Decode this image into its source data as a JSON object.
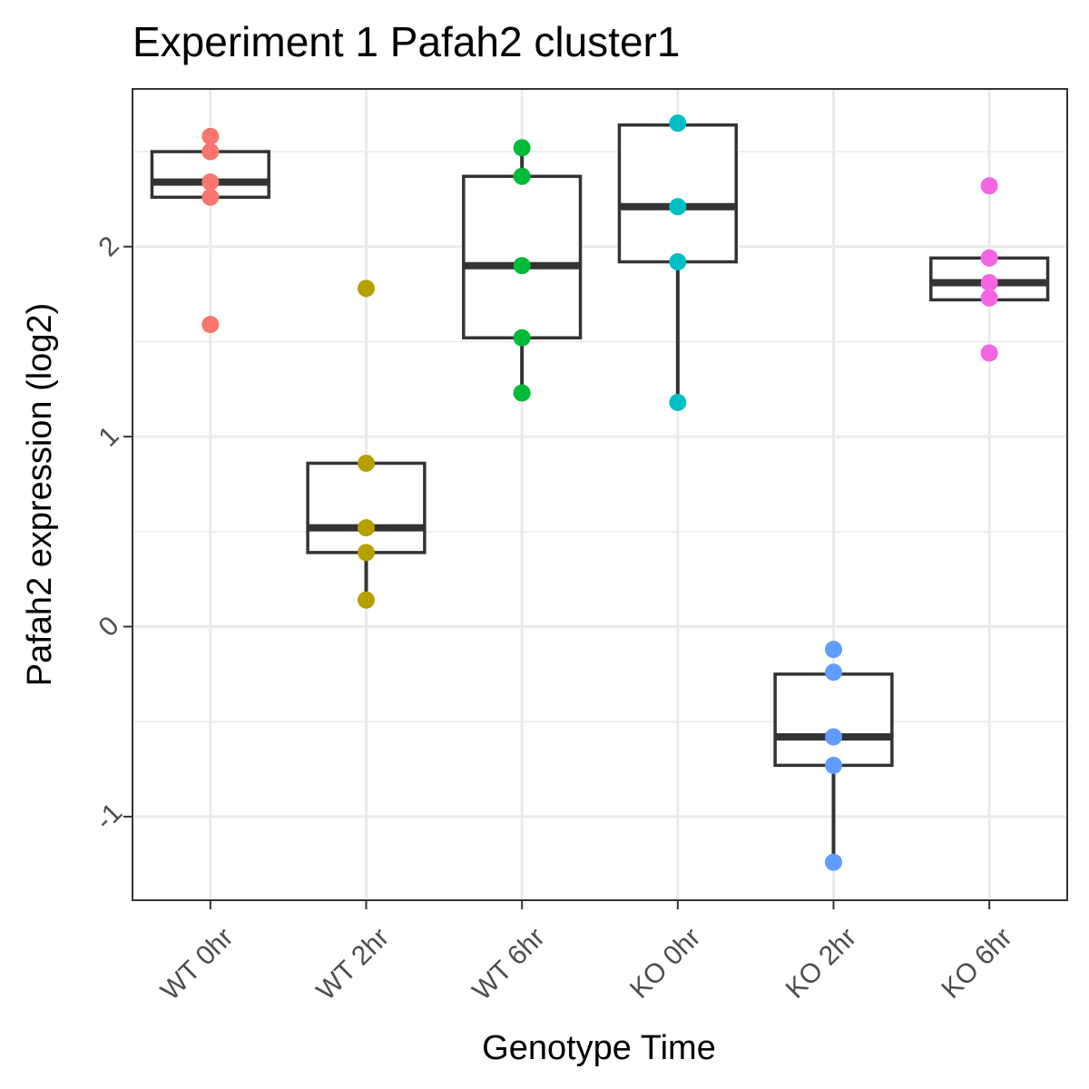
{
  "chart_data": {
    "type": "box",
    "title": "Experiment 1 Pafah2 cluster1",
    "xlabel": "Genotype Time",
    "ylabel": "Pafah2 expression (log2)",
    "ylim": [
      -1.44,
      2.83
    ],
    "yticks": [
      "-1",
      "0",
      "1",
      "2"
    ],
    "yminor": [
      -0.5,
      0.5,
      1.5,
      2.5
    ],
    "grid": true,
    "legend": "none",
    "categories": [
      "WT 0hr",
      "WT 2hr",
      "WT 6hr",
      "KO 0hr",
      "KO 2hr",
      "KO 6hr"
    ],
    "colors": [
      "#F8766D",
      "#B79F00",
      "#00BA38",
      "#00BFC4",
      "#619CFF",
      "#F564E3"
    ],
    "boxes": [
      {
        "whisker_low": 2.26,
        "q1": 2.26,
        "median": 2.34,
        "q3": 2.5,
        "whisker_high": 2.5
      },
      {
        "whisker_low": 0.14,
        "q1": 0.39,
        "median": 0.52,
        "q3": 0.86,
        "whisker_high": 0.86
      },
      {
        "whisker_low": 1.23,
        "q1": 1.52,
        "median": 1.9,
        "q3": 2.37,
        "whisker_high": 2.52
      },
      {
        "whisker_low": 1.18,
        "q1": 1.92,
        "median": 2.21,
        "q3": 2.64,
        "whisker_high": 2.64
      },
      {
        "whisker_low": -1.24,
        "q1": -0.73,
        "median": -0.58,
        "q3": -0.25,
        "whisker_high": -0.25
      },
      {
        "whisker_low": 1.72,
        "q1": 1.72,
        "median": 1.81,
        "q3": 1.94,
        "whisker_high": 1.94
      }
    ],
    "points": [
      [
        2.58,
        2.5,
        2.34,
        2.26,
        1.59
      ],
      [
        1.78,
        0.86,
        0.52,
        0.39,
        0.14
      ],
      [
        2.52,
        2.37,
        1.9,
        1.52,
        1.23
      ],
      [
        2.65,
        2.21,
        1.92,
        1.18
      ],
      [
        -0.12,
        -0.24,
        -0.58,
        -0.73,
        -1.24
      ],
      [
        2.32,
        1.94,
        1.81,
        1.73,
        1.44
      ]
    ]
  }
}
